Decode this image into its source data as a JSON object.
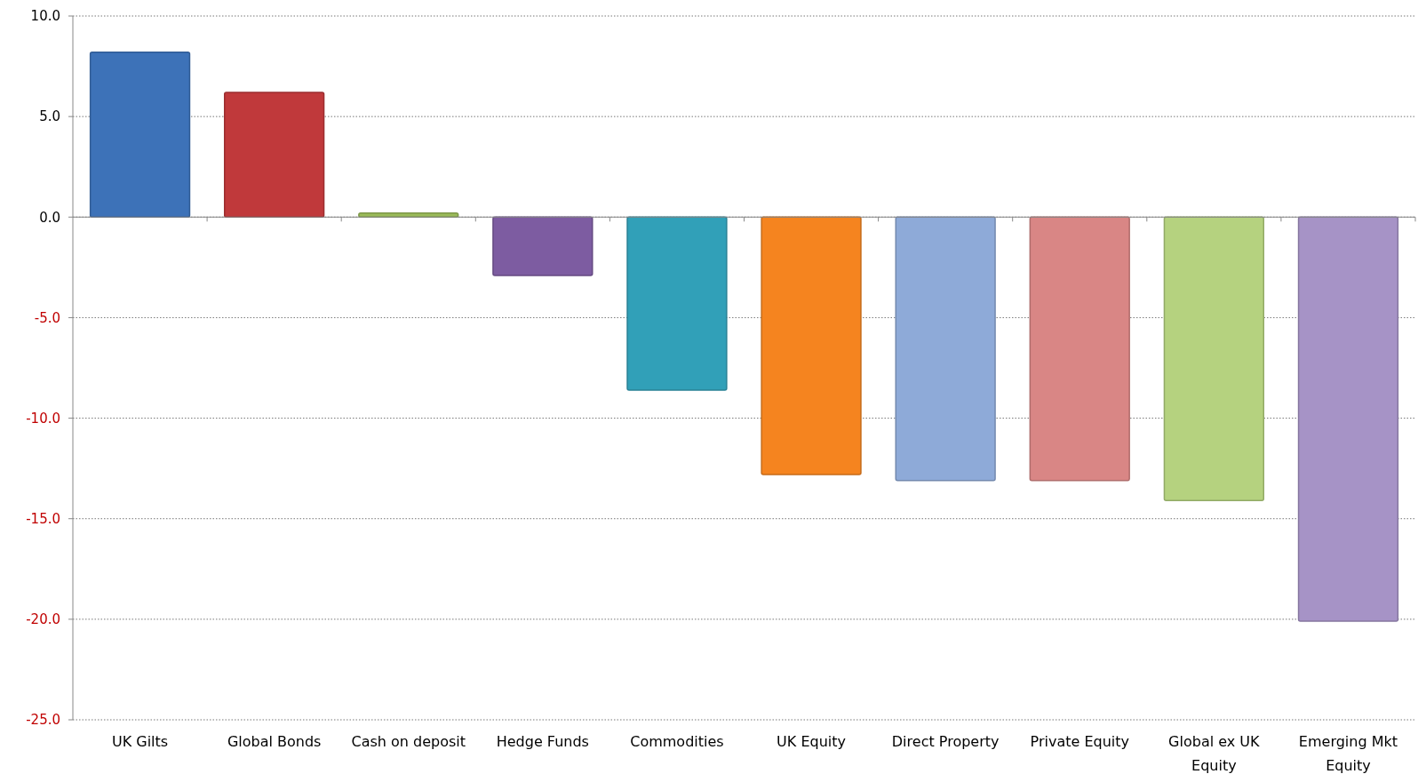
{
  "chart_data": {
    "type": "bar",
    "categories": [
      "UK Gilts",
      "Global Bonds",
      "Cash on deposit",
      "Hedge Funds",
      "Commodities",
      "UK Equity",
      "Direct Property",
      "Private Equity",
      "Global ex UK Equity",
      "Emerging Mkt Equity"
    ],
    "values": [
      8.2,
      6.2,
      0.2,
      -2.9,
      -8.6,
      -12.8,
      -13.1,
      -13.1,
      -14.1,
      -20.1
    ],
    "colors": [
      "#3d72b8",
      "#c0393b",
      "#9bbb59",
      "#7d5ca1",
      "#31a0b8",
      "#f5841f",
      "#8eaad8",
      "#d98685",
      "#b5d27f",
      "#a693c6"
    ],
    "ylim": [
      -25,
      10
    ],
    "yticks": [
      {
        "value": -25,
        "label": "-25.0"
      },
      {
        "value": -20,
        "label": "-20.0"
      },
      {
        "value": -15,
        "label": "-15.0"
      },
      {
        "value": -10,
        "label": "-10.0"
      },
      {
        "value": -5,
        "label": "-5.0"
      },
      {
        "value": 0,
        "label": "0.0"
      },
      {
        "value": 5,
        "label": "5.0"
      },
      {
        "value": 10,
        "label": "10.0"
      }
    ],
    "grid": "y"
  }
}
